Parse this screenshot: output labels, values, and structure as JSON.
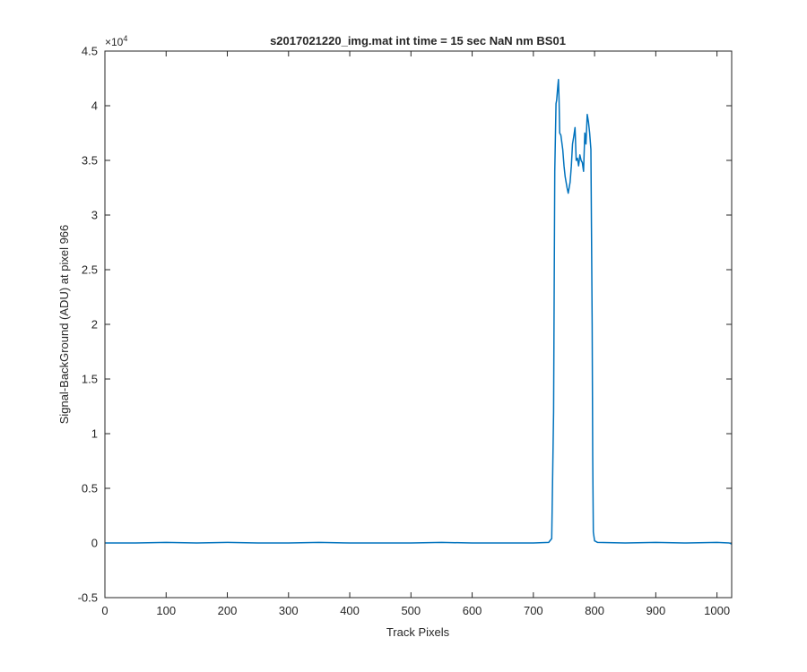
{
  "chart_data": {
    "type": "line",
    "title": "s2017021220_img.mat int time = 15 sec  NaN nm BS01",
    "xlabel": "Track Pixels",
    "ylabel": "Signal-BackGround (ADU) at pixel 966",
    "y_exponent_label": "×10",
    "y_exponent_power": "4",
    "xlim": [
      0,
      1024
    ],
    "ylim": [
      -5000,
      45000
    ],
    "x_ticks": [
      0,
      100,
      200,
      300,
      400,
      500,
      600,
      700,
      800,
      900,
      1000
    ],
    "x_tick_labels": [
      "0",
      "100",
      "200",
      "300",
      "400",
      "500",
      "600",
      "700",
      "800",
      "900",
      "1000"
    ],
    "y_ticks": [
      -5000,
      0,
      5000,
      10000,
      15000,
      20000,
      25000,
      30000,
      35000,
      40000,
      45000
    ],
    "y_tick_labels": [
      "-0.5",
      "0",
      "0.5",
      "1",
      "1.5",
      "2",
      "2.5",
      "3",
      "3.5",
      "4",
      "4.5"
    ],
    "grid": false,
    "line_color": "#0072BD",
    "series": [
      {
        "x": [
          1,
          50,
          100,
          150,
          200,
          250,
          300,
          350,
          400,
          450,
          500,
          550,
          600,
          650,
          700,
          725,
          730,
          733,
          735,
          737,
          738,
          740,
          741,
          742,
          743,
          745,
          748,
          750,
          752,
          755,
          757,
          760,
          762,
          764,
          766,
          768,
          770,
          772,
          774,
          776,
          778,
          780,
          782,
          784,
          786,
          788,
          790,
          792,
          794,
          796,
          797,
          798,
          800,
          805,
          850,
          900,
          950,
          1000,
          1020,
          1024
        ],
        "y": [
          0,
          0,
          50,
          0,
          50,
          0,
          0,
          50,
          0,
          0,
          0,
          50,
          0,
          0,
          0,
          50,
          400,
          12000,
          34000,
          40200,
          40500,
          41800,
          42400,
          40500,
          37500,
          37300,
          36000,
          34500,
          33500,
          32500,
          32000,
          33000,
          34500,
          36500,
          37200,
          38000,
          35000,
          35200,
          34500,
          35500,
          35000,
          34800,
          34000,
          37500,
          36500,
          39200,
          38500,
          37500,
          36000,
          20000,
          8000,
          1000,
          200,
          50,
          0,
          50,
          0,
          50,
          0,
          -100
        ]
      }
    ]
  }
}
